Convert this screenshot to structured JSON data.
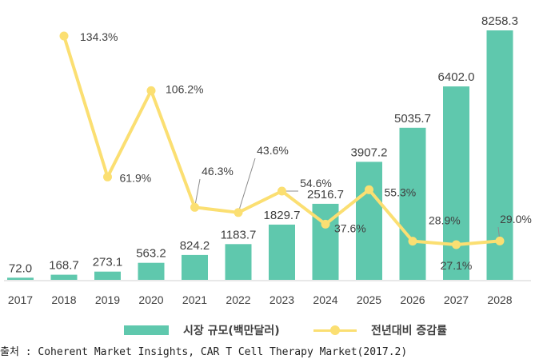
{
  "chart_data": {
    "type": "bar",
    "title": "",
    "xlabel": "",
    "ylabel": "",
    "categories": [
      "2017",
      "2018",
      "2019",
      "2020",
      "2021",
      "2022",
      "2023",
      "2024",
      "2025",
      "2026",
      "2027",
      "2028"
    ],
    "series": [
      {
        "name": "시장 규모(백만달러)",
        "type": "bar",
        "color": "#5FC8AD",
        "values": [
          72.0,
          168.7,
          273.1,
          563.2,
          824.2,
          1183.7,
          1829.7,
          2516.7,
          3907.2,
          5035.7,
          6402.0,
          8258.3
        ],
        "labels": [
          "72.0",
          "168.7",
          "273.1",
          "563.2",
          "824.2",
          "1183.7",
          "1829.7",
          "2516.7",
          "3907.2",
          "5035.7",
          "6402.0",
          "8258.3"
        ]
      },
      {
        "name": "전년대비 증감률",
        "type": "line",
        "color": "#FBDF72",
        "values": [
          null,
          134.3,
          61.9,
          106.2,
          46.3,
          43.6,
          54.6,
          37.6,
          55.3,
          28.9,
          27.1,
          29.0
        ],
        "labels": [
          "",
          "134.3%",
          "61.9%",
          "106.2%",
          "46.3%",
          "43.6%",
          "54.6%",
          "37.6%",
          "55.3%",
          "28.9%",
          "27.1%",
          "29.0%"
        ]
      }
    ],
    "ylim_bar": [
      0,
      8500
    ],
    "ylim_line": [
      0,
      140
    ],
    "grid": false,
    "legend": "bottom"
  },
  "source_text": "출처 : Coherent Market Insights, CAR T Cell Therapy Market(2017.2)"
}
